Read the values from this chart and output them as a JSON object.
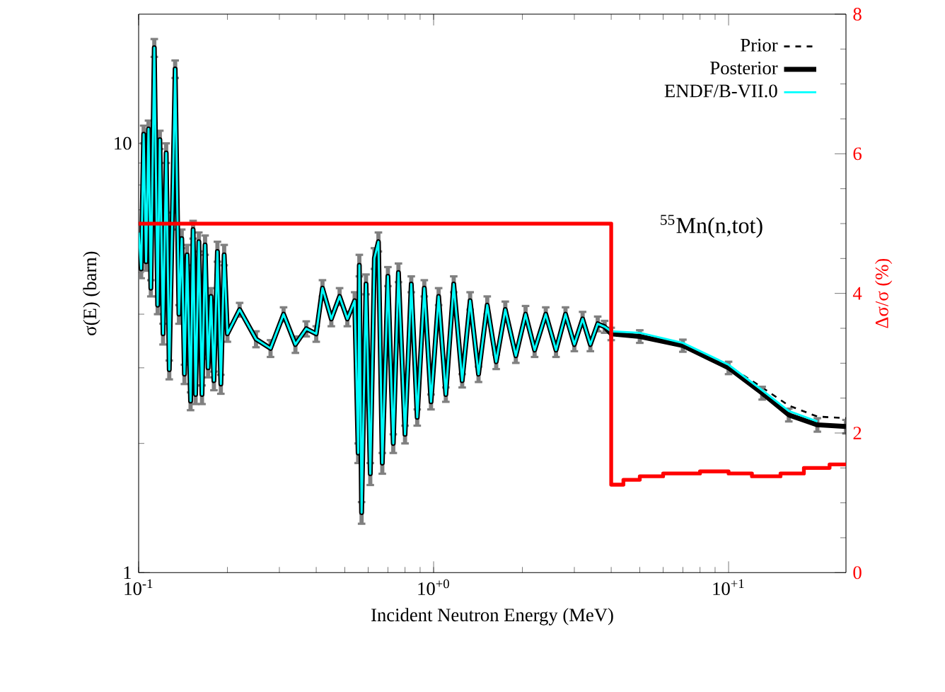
{
  "chart_data": {
    "type": "line",
    "xlabel": "Incident Neutron Energy (MeV)",
    "ylabel": "σ(E) (barn)",
    "y2label": "Δσ/σ (%)",
    "annotations": [
      "$^{55}$Mn(n,tot)"
    ],
    "log": "xy",
    "legend": "top right",
    "grid": false,
    "marker": "none",
    "xlim": [
      0.1,
      25
    ],
    "ylim": [
      1,
      20
    ],
    "y2lim": [
      0,
      8
    ],
    "xticks": [
      {
        "value": 0.1,
        "label": "10$^{-1}$"
      },
      {
        "value": 1,
        "label": "10$^{+0}$"
      },
      {
        "value": 10,
        "label": "10$^{+1}$"
      }
    ],
    "yticks": [
      1,
      10
    ],
    "y2ticks": [
      0,
      2,
      4,
      6,
      8
    ],
    "x": [
      0.1,
      0.102,
      0.104,
      0.106,
      0.108,
      0.11,
      0.113,
      0.116,
      0.118,
      0.121,
      0.124,
      0.127,
      0.13,
      0.133,
      0.137,
      0.14,
      0.143,
      0.146,
      0.15,
      0.153,
      0.156,
      0.16,
      0.164,
      0.168,
      0.172,
      0.176,
      0.18,
      0.185,
      0.19,
      0.195,
      0.2,
      0.22,
      0.25,
      0.28,
      0.31,
      0.34,
      0.37,
      0.4,
      0.42,
      0.45,
      0.48,
      0.51,
      0.54,
      0.555,
      0.56,
      0.57,
      0.59,
      0.61,
      0.63,
      0.65,
      0.67,
      0.7,
      0.73,
      0.76,
      0.8,
      0.84,
      0.88,
      0.93,
      0.98,
      1.04,
      1.1,
      1.17,
      1.25,
      1.33,
      1.42,
      1.52,
      1.63,
      1.75,
      1.9,
      2.05,
      2.2,
      2.4,
      2.6,
      2.8,
      3.0,
      3.2,
      3.4,
      3.6,
      3.8,
      4.0,
      5,
      7,
      10,
      13,
      16,
      20,
      25
    ],
    "series": [
      {
        "name": "Prior",
        "color": "#000000",
        "line_style": "dashed",
        "x": [
          7,
          10,
          13,
          16,
          20,
          25
        ],
        "values": [
          3.4,
          3.03,
          2.7,
          2.45,
          2.31,
          2.29
        ]
      },
      {
        "name": "Posterior",
        "color": "#000000",
        "values": [
          6.2,
          5.1,
          10.5,
          5.3,
          10.8,
          4.6,
          16.7,
          4.2,
          10.2,
          3.6,
          9.5,
          2.97,
          6.6,
          14.9,
          4.0,
          6.0,
          2.9,
          5.5,
          2.51,
          6.3,
          2.6,
          5.9,
          2.6,
          5.8,
          3.0,
          4.4,
          2.8,
          5.6,
          2.75,
          5.5,
          3.6,
          4.1,
          3.5,
          3.33,
          4.0,
          3.4,
          3.7,
          3.6,
          4.6,
          3.9,
          4.4,
          3.9,
          4.3,
          1.9,
          5.2,
          1.38,
          4.7,
          1.7,
          5.4,
          5.9,
          1.8,
          4.9,
          2.0,
          5.0,
          2.1,
          4.7,
          2.3,
          4.6,
          2.5,
          4.4,
          2.6,
          4.7,
          2.8,
          4.3,
          2.9,
          4.2,
          3.1,
          4.1,
          3.2,
          4.0,
          3.3,
          4.0,
          3.3,
          4.0,
          3.4,
          3.9,
          3.4,
          3.8,
          3.74,
          3.6,
          3.55,
          3.38,
          3.0,
          2.62,
          2.33,
          2.21,
          2.19
        ],
        "errors": [
          0.3,
          0.25,
          0.5,
          0.25,
          0.5,
          0.2,
          0.8,
          0.2,
          0.5,
          0.2,
          0.5,
          0.15,
          0.3,
          0.7,
          0.2,
          0.3,
          0.15,
          0.3,
          0.12,
          0.3,
          0.13,
          0.3,
          0.13,
          0.3,
          0.15,
          0.2,
          0.14,
          0.3,
          0.14,
          0.3,
          0.15,
          0.15,
          0.15,
          0.15,
          0.15,
          0.15,
          0.15,
          0.15,
          0.2,
          0.15,
          0.2,
          0.15,
          0.2,
          0.1,
          0.3,
          0.08,
          0.25,
          0.1,
          0.3,
          0.3,
          0.1,
          0.25,
          0.1,
          0.25,
          0.1,
          0.2,
          0.1,
          0.2,
          0.1,
          0.2,
          0.1,
          0.2,
          0.1,
          0.2,
          0.12,
          0.2,
          0.12,
          0.18,
          0.12,
          0.18,
          0.12,
          0.15,
          0.12,
          0.15,
          0.12,
          0.15,
          0.12,
          0.15,
          0.12,
          0.12,
          0.12,
          0.11,
          0.1,
          0.09,
          0.08,
          0.08,
          0.08
        ]
      },
      {
        "name": "ENDF/B-VII.0",
        "color": "#00ffff",
        "values": [
          6.2,
          5.1,
          10.5,
          5.3,
          10.8,
          4.6,
          16.7,
          4.2,
          10.2,
          3.6,
          9.5,
          2.97,
          6.6,
          14.9,
          4.0,
          6.0,
          2.9,
          5.5,
          2.51,
          6.3,
          2.6,
          5.9,
          2.6,
          5.8,
          3.0,
          4.4,
          2.8,
          5.6,
          2.75,
          5.5,
          3.6,
          4.1,
          3.5,
          3.33,
          4.0,
          3.4,
          3.7,
          3.6,
          4.6,
          3.9,
          4.4,
          3.9,
          4.3,
          1.9,
          5.2,
          1.38,
          4.7,
          1.7,
          5.4,
          5.9,
          1.8,
          4.9,
          2.0,
          5.0,
          2.1,
          4.7,
          2.3,
          4.6,
          2.5,
          4.4,
          2.6,
          4.7,
          2.8,
          4.3,
          2.9,
          4.2,
          3.1,
          4.1,
          3.2,
          4.0,
          3.3,
          4.0,
          3.3,
          4.0,
          3.4,
          3.9,
          3.4,
          3.8,
          3.74,
          3.65,
          3.62,
          3.43,
          3.05,
          2.66,
          2.38,
          2.25,
          null
        ]
      },
      {
        "type": "step",
        "axis": "y2",
        "color": "#ff0000",
        "x": [
          0.1,
          4.0,
          4.4,
          5,
          6,
          8,
          10,
          12,
          15,
          18,
          22,
          25
        ],
        "values": [
          5.0,
          1.26,
          1.33,
          1.38,
          1.42,
          1.45,
          1.42,
          1.38,
          1.42,
          1.5,
          1.55,
          1.55
        ]
      }
    ]
  }
}
